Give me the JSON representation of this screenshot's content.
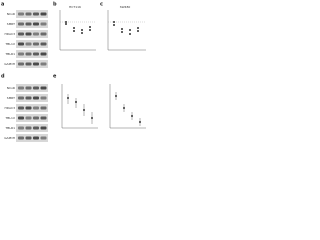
{
  "panels": [
    {
      "letter": "a",
      "rows": [
        "NCoR",
        "SMRT",
        "HDAC3",
        "TBL1X",
        "TBLR1",
        "GAPDH"
      ]
    },
    {
      "letter": "b",
      "title": "HCT116"
    },
    {
      "letter": "c",
      "title": "SW480"
    },
    {
      "letter": "d",
      "rows": [
        "NCoR",
        "SMRT",
        "HDAC3",
        "TBL1X",
        "TBLR1",
        "GAPDH"
      ]
    },
    {
      "letter": "e"
    }
  ]
}
